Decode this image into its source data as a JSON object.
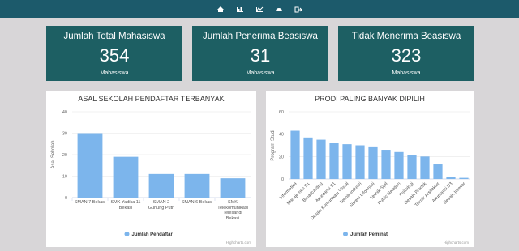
{
  "cards": [
    {
      "title": "Jumlah Total Mahasiswa",
      "value": 354,
      "unit": "Mahasiswa"
    },
    {
      "title": "Jumlah Penerima Beasiswa",
      "value": 31,
      "unit": "Mahasiswa"
    },
    {
      "title": "Tidak Menerima Beasiswa",
      "value": 323,
      "unit": "Mahasiswa"
    }
  ],
  "chart_data": [
    {
      "type": "bar",
      "title": "ASAL SEKOLAH PENDAFTAR TERBANYAK",
      "y_label": "Asal Sekolah",
      "categories": [
        "SMAN 7 Bekasi",
        "SMK Yadika 11 Bekasi",
        "SMAN 2 Gunung Putri",
        "SMAN 6 Bekasi",
        "SMK Telekomunikasi Telesandi Bekasi"
      ],
      "series": [
        {
          "name": "Jumlah Pendaftar",
          "color": "#7cb5ec",
          "values": [
            30,
            19,
            11,
            11,
            9
          ]
        }
      ],
      "ylim": [
        0,
        40
      ],
      "yticks": [
        0,
        10,
        20,
        30,
        40
      ],
      "grid": true,
      "credit": "Highcharts.com"
    },
    {
      "type": "bar",
      "title": "PRODI PALING BANYAK DIPILIH",
      "y_label": "Program Studi",
      "categories": [
        "Informatika",
        "Manajemen S1",
        "Broadcasting",
        "Akuntansi S1",
        "Desain Komunikasi Visual",
        "Teknik Industri",
        "Sistem Informasi",
        "Teknik Sipil",
        "Public Relation",
        "Psikologi",
        "Desain Produk",
        "Teknik Arsitektur",
        "Akuntansi D3",
        "Desain Interior"
      ],
      "series": [
        {
          "name": "Jumlah Peminat",
          "color": "#7cb5ec",
          "values": [
            43,
            37,
            35,
            32,
            31,
            30,
            29,
            26,
            24,
            21,
            20,
            13,
            2,
            1
          ]
        }
      ],
      "ylim": [
        0,
        60
      ],
      "yticks": [
        0,
        20,
        40,
        60
      ],
      "grid": true,
      "credit": "Highcharts.com"
    }
  ]
}
